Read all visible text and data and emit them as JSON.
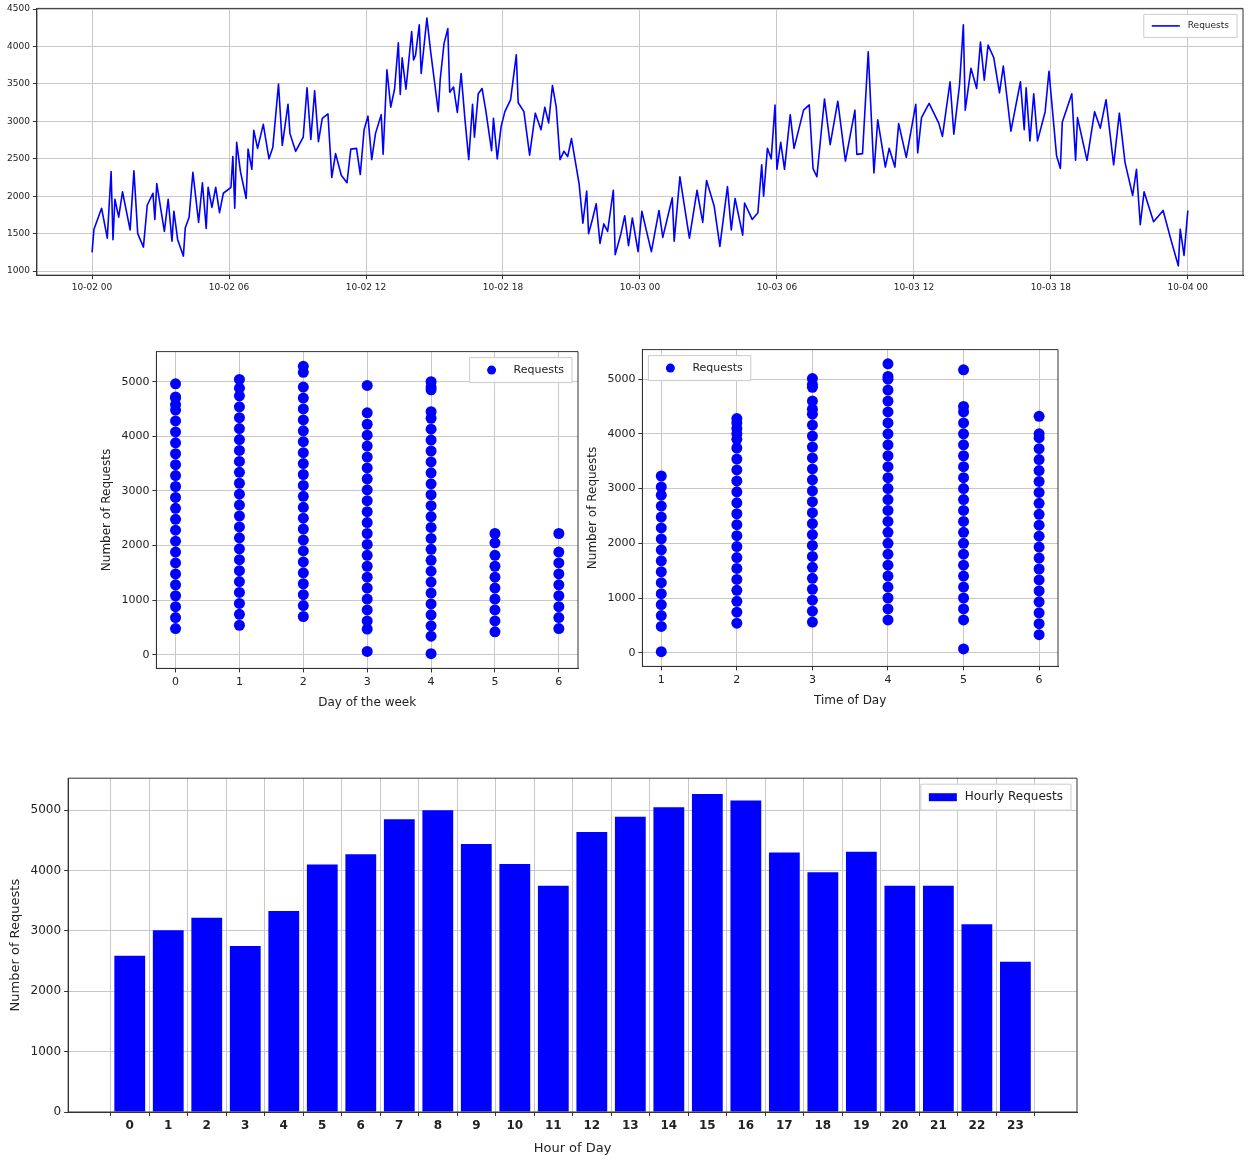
{
  "chart_data": [
    {
      "type": "line",
      "x": [
        "--10-02T00:00",
        "--10-02T00:05",
        "--10-02T00:25",
        "--10-02T00:40",
        "--10-02T00:50",
        "--10-02T00:55",
        "--10-02T01:00",
        "--10-02T01:10",
        "--10-02T01:20",
        "--10-02T01:40",
        "--10-02T01:50",
        "--10-02T02:00",
        "--10-02T02:15",
        "--10-02T02:25",
        "--10-02T02:40",
        "--10-02T02:45",
        "--10-02T02:50",
        "--10-02T03:10",
        "--10-02T03:20",
        "--10-02T03:30",
        "--10-02T03:35",
        "--10-02T03:45",
        "--10-02T04:00",
        "--10-02T04:05",
        "--10-02T04:15",
        "--10-02T04:25",
        "--10-02T04:40",
        "--10-02T04:50",
        "--10-02T05:00",
        "--10-02T05:05",
        "--10-02T05:15",
        "--10-02T05:25",
        "--10-02T05:35",
        "--10-02T05:45",
        "--10-02T06:05",
        "--10-02T06:10",
        "--10-02T06:15",
        "--10-02T06:20",
        "--10-02T06:30",
        "--10-02T06:45",
        "--10-02T06:50",
        "--10-02T07:00",
        "--10-02T07:05",
        "--10-02T07:15",
        "--10-02T07:30",
        "--10-02T07:45",
        "--10-02T07:55",
        "--10-02T08:10",
        "--10-02T08:20",
        "--10-02T08:35",
        "--10-02T08:40",
        "--10-02T08:55",
        "--10-02T09:15",
        "--10-02T09:25",
        "--10-02T09:35",
        "--10-02T09:45",
        "--10-02T09:55",
        "--10-02T10:05",
        "--10-02T10:20",
        "--10-02T10:30",
        "--10-02T10:40",
        "--10-02T10:55",
        "--10-02T11:10",
        "--10-02T11:20",
        "--10-02T11:35",
        "--10-02T11:45",
        "--10-02T11:55",
        "--10-02T12:05",
        "--10-02T12:15",
        "--10-02T12:25",
        "--10-02T12:40",
        "--10-02T12:45",
        "--10-02T12:55",
        "--10-02T13:05",
        "--10-02T13:15",
        "--10-02T13:25",
        "--10-02T13:30",
        "--10-02T13:35",
        "--10-02T13:45",
        "--10-02T14:00",
        "--10-02T14:05",
        "--10-02T14:10",
        "--10-02T14:20",
        "--10-02T14:25",
        "--10-02T14:40",
        "--10-02T14:50",
        "--10-02T15:00",
        "--10-02T15:10",
        "--10-02T15:15",
        "--10-02T15:25",
        "--10-02T15:35",
        "--10-02T15:40",
        "--10-02T15:50",
        "--10-02T16:00",
        "--10-02T16:10",
        "--10-02T16:20",
        "--10-02T16:30",
        "--10-02T16:40",
        "--10-02T16:45",
        "--10-02T16:55",
        "--10-02T17:05",
        "--10-02T17:15",
        "--10-02T17:30",
        "--10-02T17:35",
        "--10-02T17:45",
        "--10-02T17:55",
        "--10-02T18:05",
        "--10-02T18:20",
        "--10-02T18:35",
        "--10-02T18:40",
        "--10-02T18:55",
        "--10-02T19:10",
        "--10-02T19:25",
        "--10-02T19:40",
        "--10-02T19:50",
        "--10-02T20:00",
        "--10-02T20:10",
        "--10-02T20:20",
        "--10-02T20:30",
        "--10-02T20:40",
        "--10-02T20:50",
        "--10-02T21:00",
        "--10-02T21:20",
        "--10-02T21:30",
        "--10-02T21:40",
        "--10-02T21:45",
        "--10-02T21:55",
        "--10-02T22:05",
        "--10-02T22:15",
        "--10-02T22:25",
        "--10-02T22:35",
        "--10-02T22:50",
        "--10-02T22:55",
        "--10-02T23:10",
        "--10-02T23:20",
        "--10-02T23:30",
        "--10-02T23:40",
        "--10-02T23:55",
        "--10-03T00:05",
        "--10-03T00:30",
        "--10-03T00:50",
        "--10-03T01:00",
        "--10-03T01:25",
        "--10-03T01:30",
        "--10-03T01:45",
        "--10-03T02:10",
        "--10-03T02:30",
        "--10-03T02:45",
        "--10-03T02:55",
        "--10-03T03:15",
        "--10-03T03:30",
        "--10-03T03:50",
        "--10-03T04:00",
        "--10-03T04:10",
        "--10-03T04:30",
        "--10-03T04:35",
        "--10-03T04:55",
        "--10-03T05:10",
        "--10-03T05:20",
        "--10-03T05:25",
        "--10-03T05:35",
        "--10-03T05:45",
        "--10-03T05:55",
        "--10-03T06:00",
        "--10-03T06:10",
        "--10-03T06:20",
        "--10-03T06:35",
        "--10-03T06:45",
        "--10-03T07:10",
        "--10-03T07:25",
        "--10-03T07:35",
        "--10-03T07:45",
        "--10-03T08:05",
        "--10-03T08:20",
        "--10-03T08:40",
        "--10-03T09:00",
        "--10-03T09:25",
        "--10-03T09:30",
        "--10-03T09:45",
        "--10-03T10:00",
        "--10-03T10:15",
        "--10-03T10:25",
        "--10-03T10:45",
        "--10-03T10:55",
        "--10-03T11:10",
        "--10-03T11:20",
        "--10-03T11:40",
        "--10-03T12:05",
        "--10-03T12:10",
        "--10-03T12:20",
        "--10-03T12:40",
        "--10-03T13:05",
        "--10-03T13:15",
        "--10-03T13:35",
        "--10-03T13:45",
        "--10-03T14:00",
        "--10-03T14:10",
        "--10-03T14:15",
        "--10-03T14:30",
        "--10-03T14:45",
        "--10-03T14:55",
        "--10-03T15:05",
        "--10-03T15:15",
        "--10-03T15:30",
        "--10-03T15:45",
        "--10-03T15:55",
        "--10-03T16:15",
        "--10-03T16:40",
        "--10-03T16:50",
        "--10-03T16:55",
        "--10-03T17:05",
        "--10-03T17:15",
        "--10-03T17:25",
        "--10-03T17:45",
        "--10-03T17:55",
        "--10-03T18:15",
        "--10-03T18:25",
        "--10-03T18:30",
        "--10-03T18:55",
        "--10-03T19:05",
        "--10-03T19:10",
        "--10-03T19:35",
        "--10-03T19:55",
        "--10-03T20:10",
        "--10-03T20:25",
        "--10-03T20:45",
        "--10-03T21:00",
        "--10-03T21:15",
        "--10-03T21:35",
        "--10-03T21:45",
        "--10-03T21:55",
        "--10-03T22:05",
        "--10-03T22:30",
        "--10-03T22:55",
        "--10-03T23:15",
        "--10-03T23:35",
        "--10-03T23:40",
        "--10-03T23:50",
        "--10-04T00:00"
      ],
      "series": [
        {
          "name": "Requests",
          "color": "#0000ff",
          "values": [
            1250,
            1560,
            1840,
            1440,
            2330,
            1420,
            1960,
            1720,
            2060,
            1550,
            2340,
            1500,
            1320,
            1880,
            2040,
            1690,
            2170,
            1530,
            1960,
            1400,
            1800,
            1420,
            1200,
            1580,
            1720,
            2320,
            1650,
            2180,
            1570,
            2120,
            1850,
            2120,
            1780,
            2040,
            2120,
            2530,
            1840,
            2720,
            2330,
            1970,
            2630,
            2360,
            2880,
            2640,
            2960,
            2500,
            2650,
            3500,
            2680,
            3230,
            2840,
            2600,
            2790,
            3450,
            2760,
            3410,
            2730,
            3040,
            3100,
            2250,
            2570,
            2280,
            2180,
            2630,
            2640,
            2290,
            2890,
            3070,
            2490,
            2840,
            3090,
            2560,
            3690,
            3190,
            3430,
            4050,
            3360,
            3850,
            3430,
            4200,
            3820,
            3880,
            4290,
            3640,
            4380,
            3930,
            3530,
            3130,
            3560,
            4040,
            4240,
            3390,
            3460,
            3120,
            3640,
            3030,
            2490,
            3230,
            2790,
            3370,
            3440,
            3140,
            2610,
            3040,
            2500,
            2930,
            3130,
            3290,
            3890,
            3250,
            3130,
            2550,
            3110,
            2890,
            3190,
            2980,
            3480,
            3190,
            2490,
            2600,
            2530,
            2770,
            2170,
            1640,
            2070,
            1500,
            1690,
            1900,
            1370,
            1630,
            1530,
            2080,
            1220,
            1500,
            1740,
            1340,
            1710,
            1260,
            1800,
            1260,
            1810,
            1450,
            1980,
            1400,
            2260,
            1440,
            2080,
            1650,
            2210,
            1870,
            1330,
            2130,
            1550,
            1970,
            1480,
            1910,
            1690,
            1780,
            2420,
            2000,
            2640,
            2500,
            3220,
            2360,
            2720,
            2360,
            3090,
            2640,
            3150,
            3220,
            2370,
            2260,
            3300,
            2690,
            3270,
            2470,
            3150,
            2560,
            2570,
            3930,
            2310,
            3020,
            2390,
            2640,
            2390,
            2970,
            2520,
            3230,
            2580,
            3050,
            3240,
            2980,
            2800,
            3530,
            2830,
            3490,
            4290,
            3150,
            3710,
            3440,
            4060,
            3550,
            4020,
            3850,
            3380,
            3740,
            2870,
            3530,
            2890,
            3450,
            2740,
            3370,
            2740,
            3130,
            3670,
            2540,
            2370,
            2990,
            3370,
            2480,
            3050,
            2480,
            3130,
            2910,
            3290,
            2420,
            3110,
            2450,
            2010,
            2360,
            1620,
            2060,
            1660,
            1810,
            1430,
            1070,
            1560,
            1210,
            1810
          ]
        }
      ],
      "xlim": [
        "--10-01T21:35",
        "--10-04T02:25"
      ],
      "xticks": [
        {
          "value": "--10-02T00:00",
          "label": "10-02 00"
        },
        {
          "value": "--10-02T06:00",
          "label": "10-02 06"
        },
        {
          "value": "--10-02T12:00",
          "label": "10-02 12"
        },
        {
          "value": "--10-02T18:00",
          "label": "10-02 18"
        },
        {
          "value": "--10-03T00:00",
          "label": "10-03 00"
        },
        {
          "value": "--10-03T06:00",
          "label": "10-03 06"
        },
        {
          "value": "--10-03T12:00",
          "label": "10-03 12"
        },
        {
          "value": "--10-03T18:00",
          "label": "10-03 18"
        },
        {
          "value": "--10-04T00:00",
          "label": "10-04 00"
        }
      ],
      "ylim": [
        945,
        4510
      ],
      "yticks": [
        1000,
        1500,
        2000,
        2500,
        3000,
        3500,
        4000,
        4500
      ],
      "grid": true,
      "legend": "top right",
      "marker": "none",
      "line_style": "solid"
    },
    {
      "type": "scatter",
      "xlabel": "Day of the week",
      "ylabel": "Number of Requests",
      "series": [
        {
          "name": "Requests",
          "color": "#0000ff",
          "x": [
            0,
            0,
            0,
            0,
            0,
            0,
            0,
            0,
            0,
            0,
            0,
            0,
            0,
            0,
            0,
            0,
            0,
            0,
            0,
            0,
            0,
            0,
            0,
            0,
            0,
            1,
            1,
            1,
            1,
            1,
            1,
            1,
            1,
            1,
            1,
            1,
            1,
            1,
            1,
            1,
            1,
            1,
            1,
            1,
            1,
            1,
            1,
            1,
            1,
            2,
            2,
            2,
            2,
            2,
            2,
            2,
            2,
            2,
            2,
            2,
            2,
            2,
            2,
            2,
            2,
            2,
            2,
            2,
            2,
            2,
            2,
            2,
            2,
            3,
            3,
            3,
            3,
            3,
            3,
            3,
            3,
            3,
            3,
            3,
            3,
            3,
            3,
            3,
            3,
            3,
            3,
            3,
            3,
            3,
            3,
            3,
            4,
            4,
            4,
            4,
            4,
            4,
            4,
            4,
            4,
            4,
            4,
            4,
            4,
            4,
            4,
            4,
            4,
            4,
            4,
            4,
            4,
            4,
            4,
            4,
            4,
            4,
            5,
            5,
            5,
            5,
            5,
            5,
            5,
            5,
            5,
            5,
            6,
            6,
            6,
            6,
            6,
            6,
            6,
            6,
            6
          ],
          "values": [
            480,
            680,
            880,
            1080,
            1280,
            1480,
            1680,
            1880,
            2080,
            2280,
            2480,
            2680,
            2880,
            3080,
            3280,
            3480,
            3680,
            3880,
            4080,
            4280,
            4480,
            4580,
            4700,
            4720,
            4960,
            540,
            740,
            940,
            1140,
            1340,
            1540,
            1740,
            1940,
            2140,
            2340,
            2540,
            2740,
            2940,
            3140,
            3340,
            3540,
            3740,
            3940,
            4140,
            4340,
            4540,
            4740,
            4880,
            5040,
            700,
            900,
            1100,
            1300,
            1500,
            1700,
            1900,
            2100,
            2300,
            2500,
            2700,
            2900,
            3100,
            3300,
            3500,
            3700,
            3900,
            4100,
            4300,
            4500,
            4700,
            4900,
            5170,
            5280,
            60,
            470,
            620,
            820,
            1020,
            1220,
            1420,
            1620,
            1820,
            2020,
            2220,
            2420,
            2620,
            2820,
            3020,
            3220,
            3420,
            3620,
            3820,
            4020,
            4220,
            4430,
            4930,
            20,
            340,
            530,
            730,
            930,
            1130,
            1330,
            1530,
            1730,
            1930,
            2130,
            2330,
            2530,
            2730,
            2930,
            3130,
            3330,
            3530,
            3730,
            3930,
            4130,
            4330,
            4450,
            4850,
            4900,
            5000,
            420,
            620,
            820,
            1020,
            1220,
            1420,
            1620,
            1820,
            2050,
            2220,
            480,
            680,
            880,
            1080,
            1280,
            1480,
            1680,
            1880,
            2220
          ]
        }
      ],
      "xlim": [
        -0.3,
        6.3
      ],
      "xticks": [
        0,
        1,
        2,
        3,
        4,
        5,
        6
      ],
      "ylim": [
        -250,
        5550
      ],
      "yticks": [
        0,
        1000,
        2000,
        3000,
        4000,
        5000
      ],
      "grid": true,
      "legend": "top right",
      "marker": "circle"
    },
    {
      "type": "scatter",
      "xlabel": "Time of Day",
      "ylabel": "Number of Requests",
      "series": [
        {
          "name": "Requests",
          "color": "#0000ff",
          "x": [
            1,
            1,
            1,
            1,
            1,
            1,
            1,
            1,
            1,
            1,
            1,
            1,
            1,
            1,
            1,
            1,
            2,
            2,
            2,
            2,
            2,
            2,
            2,
            2,
            2,
            2,
            2,
            2,
            2,
            2,
            2,
            2,
            2,
            2,
            2,
            2,
            2,
            2,
            3,
            3,
            3,
            3,
            3,
            3,
            3,
            3,
            3,
            3,
            3,
            3,
            3,
            3,
            3,
            3,
            3,
            3,
            3,
            3,
            3,
            3,
            3,
            3,
            3,
            4,
            4,
            4,
            4,
            4,
            4,
            4,
            4,
            4,
            4,
            4,
            4,
            4,
            4,
            4,
            4,
            4,
            4,
            4,
            4,
            4,
            4,
            4,
            4,
            4,
            5,
            5,
            5,
            5,
            5,
            5,
            5,
            5,
            5,
            5,
            5,
            5,
            5,
            5,
            5,
            5,
            5,
            5,
            5,
            5,
            5,
            5,
            5,
            6,
            6,
            6,
            6,
            6,
            6,
            6,
            6,
            6,
            6,
            6,
            6,
            6,
            6,
            6,
            6,
            6,
            6,
            6,
            6,
            6
          ],
          "values": [
            20,
            480,
            680,
            880,
            1080,
            1280,
            1480,
            1680,
            1880,
            2080,
            2280,
            2480,
            2680,
            2880,
            3030,
            3230,
            540,
            740,
            940,
            1140,
            1340,
            1540,
            1740,
            1940,
            2140,
            2340,
            2540,
            2740,
            2940,
            3140,
            3340,
            3540,
            3740,
            3900,
            4000,
            4100,
            4200,
            4280,
            560,
            760,
            960,
            1160,
            1360,
            1560,
            1760,
            1960,
            2160,
            2360,
            2560,
            2760,
            2960,
            3160,
            3360,
            3560,
            3760,
            3960,
            4160,
            4360,
            4450,
            4600,
            4850,
            4900,
            5010,
            600,
            800,
            1000,
            1200,
            1400,
            1600,
            1800,
            2000,
            2200,
            2400,
            2600,
            2800,
            3000,
            3200,
            3400,
            3600,
            3800,
            4000,
            4200,
            4400,
            4600,
            4800,
            5000,
            5050,
            5280,
            70,
            600,
            800,
            1000,
            1200,
            1400,
            1600,
            1800,
            2000,
            2200,
            2400,
            2600,
            2800,
            3000,
            3200,
            3400,
            3600,
            3800,
            4000,
            4200,
            4400,
            4500,
            5170,
            330,
            530,
            730,
            930,
            1130,
            1330,
            1530,
            1730,
            1930,
            2130,
            2330,
            2530,
            2730,
            2930,
            3130,
            3330,
            3530,
            3730,
            3930,
            4000,
            4320
          ]
        }
      ],
      "xlim": [
        0.75,
        6.25
      ],
      "xticks": [
        1,
        2,
        3,
        4,
        5,
        6
      ],
      "ylim": [
        -250,
        5540
      ],
      "yticks": [
        0,
        1000,
        2000,
        3000,
        4000,
        5000
      ],
      "grid": true,
      "legend": "top left",
      "marker": "circle"
    },
    {
      "type": "bar",
      "xlabel": "Hour of Day",
      "ylabel": "Number of Requests",
      "x": [
        0,
        1,
        2,
        3,
        4,
        5,
        6,
        7,
        8,
        9,
        10,
        11,
        12,
        13,
        14,
        15,
        16,
        17,
        18,
        19,
        20,
        21,
        22,
        23
      ],
      "series": [
        {
          "name": "Hourly Requests",
          "color": "#0000ff",
          "values": [
            2590,
            3010,
            3220,
            2750,
            3330,
            4100,
            4270,
            4850,
            5000,
            4440,
            4110,
            3750,
            4640,
            4890,
            5050,
            5270,
            5160,
            4300,
            3970,
            4310,
            3750,
            3750,
            3110,
            2490
          ]
        }
      ],
      "xlim": [
        -1.6,
        24.6
      ],
      "xticks": [
        0,
        1,
        2,
        3,
        4,
        5,
        6,
        7,
        8,
        9,
        10,
        11,
        12,
        13,
        14,
        15,
        16,
        17,
        18,
        19,
        20,
        21,
        22,
        23
      ],
      "ylim": [
        0,
        5530
      ],
      "yticks": [
        0,
        1000,
        2000,
        3000,
        4000,
        5000
      ],
      "grid": true,
      "legend": "top right"
    }
  ]
}
